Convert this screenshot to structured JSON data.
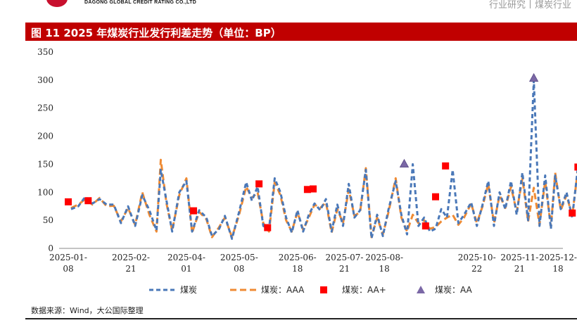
{
  "header": {
    "company": "DAGONG GLOBAL CREDIT RATING CO.,LTD",
    "right_text": "行业研究丨煤炭行业"
  },
  "figure_title": "图 11   2025 年煤炭行业发行利差走势（单位：BP）",
  "source_note": "数据来源：Wind，大公国际整理",
  "colors": {
    "title_bg": "#c00000",
    "series_main": "#4a78b8",
    "series_aaa": "#ef8b34",
    "marker_aaplus": "#ff0000",
    "marker_aa": "#7b68a6"
  },
  "chart_data": {
    "type": "line",
    "title": "",
    "xlabel": "",
    "ylabel": "",
    "ylim": [
      0,
      350
    ],
    "yticks": [
      0,
      50,
      100,
      150,
      200,
      250,
      300,
      350
    ],
    "xlim": [
      "2025-01-08",
      "2025-12-18"
    ],
    "xtick_labels": [
      {
        "line1": "2025-01-",
        "line2": "08",
        "date": "2025-01-08"
      },
      {
        "line1": "2025-02-",
        "line2": "21",
        "date": "2025-02-21"
      },
      {
        "line1": "2025-04-",
        "line2": "01",
        "date": "2025-04-01"
      },
      {
        "line1": "2025-05-",
        "line2": "08",
        "date": "2025-05-08"
      },
      {
        "line1": "2025-06-",
        "line2": "18",
        "date": "2025-06-18"
      },
      {
        "line1": "2025-07-",
        "line2": "21",
        "date": "2025-07-21"
      },
      {
        "line1": "2025-08-",
        "line2": "18",
        "date": "2025-08-18"
      },
      {
        "line1": "2025-10-",
        "line2": "22",
        "date": "2025-10-22"
      },
      {
        "line1": "2025-11-",
        "line2": "21",
        "date": "2025-11-21"
      },
      {
        "line1": "2025-12-",
        "line2": "18",
        "date": "2025-12-18"
      }
    ],
    "grid": false,
    "legend_position": "bottom",
    "series": [
      {
        "name": "煤炭",
        "style": "dashed-line",
        "points": [
          [
            "2025-01-10",
            70
          ],
          [
            "2025-01-15",
            75
          ],
          [
            "2025-01-20",
            92
          ],
          [
            "2025-01-25",
            80
          ],
          [
            "2025-01-30",
            88
          ],
          [
            "2025-02-04",
            78
          ],
          [
            "2025-02-09",
            78
          ],
          [
            "2025-02-14",
            45
          ],
          [
            "2025-02-19",
            75
          ],
          [
            "2025-02-24",
            40
          ],
          [
            "2025-03-01",
            95
          ],
          [
            "2025-03-06",
            68
          ],
          [
            "2025-03-11",
            32
          ],
          [
            "2025-03-14",
            140
          ],
          [
            "2025-03-18",
            85
          ],
          [
            "2025-03-22",
            30
          ],
          [
            "2025-03-27",
            100
          ],
          [
            "2025-04-01",
            120
          ],
          [
            "2025-04-05",
            30
          ],
          [
            "2025-04-10",
            68
          ],
          [
            "2025-04-15",
            55
          ],
          [
            "2025-04-19",
            22
          ],
          [
            "2025-04-24",
            35
          ],
          [
            "2025-04-28",
            58
          ],
          [
            "2025-05-03",
            17
          ],
          [
            "2025-05-08",
            65
          ],
          [
            "2025-05-13",
            118
          ],
          [
            "2025-05-17",
            85
          ],
          [
            "2025-05-21",
            110
          ],
          [
            "2025-05-25",
            40
          ],
          [
            "2025-05-29",
            35
          ],
          [
            "2025-06-02",
            125
          ],
          [
            "2025-06-06",
            100
          ],
          [
            "2025-06-10",
            55
          ],
          [
            "2025-06-14",
            28
          ],
          [
            "2025-06-18",
            68
          ],
          [
            "2025-06-22",
            30
          ],
          [
            "2025-06-26",
            60
          ],
          [
            "2025-06-30",
            80
          ],
          [
            "2025-07-04",
            68
          ],
          [
            "2025-07-08",
            88
          ],
          [
            "2025-07-12",
            30
          ],
          [
            "2025-07-16",
            78
          ],
          [
            "2025-07-20",
            40
          ],
          [
            "2025-07-24",
            115
          ],
          [
            "2025-07-28",
            55
          ],
          [
            "2025-08-01",
            68
          ],
          [
            "2025-08-05",
            140
          ],
          [
            "2025-08-09",
            18
          ],
          [
            "2025-08-13",
            60
          ],
          [
            "2025-08-17",
            22
          ],
          [
            "2025-08-21",
            70
          ],
          [
            "2025-08-26",
            120
          ],
          [
            "2025-08-30",
            60
          ],
          [
            "2025-09-03",
            25
          ],
          [
            "2025-09-07",
            150
          ],
          [
            "2025-09-11",
            40
          ],
          [
            "2025-09-15",
            55
          ],
          [
            "2025-09-19",
            30
          ],
          [
            "2025-09-23",
            35
          ],
          [
            "2025-09-27",
            70
          ],
          [
            "2025-10-01",
            55
          ],
          [
            "2025-10-05",
            140
          ],
          [
            "2025-10-09",
            45
          ],
          [
            "2025-10-13",
            60
          ],
          [
            "2025-10-18",
            82
          ],
          [
            "2025-10-22",
            40
          ],
          [
            "2025-10-26",
            78
          ],
          [
            "2025-10-30",
            120
          ],
          [
            "2025-11-03",
            40
          ],
          [
            "2025-11-07",
            100
          ],
          [
            "2025-11-11",
            70
          ],
          [
            "2025-11-15",
            120
          ],
          [
            "2025-11-19",
            60
          ],
          [
            "2025-11-23",
            135
          ],
          [
            "2025-11-27",
            50
          ],
          [
            "2025-12-01",
            300
          ],
          [
            "2025-12-05",
            40
          ],
          [
            "2025-12-09",
            130
          ],
          [
            "2025-12-13",
            35
          ],
          [
            "2025-12-16",
            130
          ],
          [
            "2025-12-20",
            70
          ],
          [
            "2025-12-24",
            100
          ],
          [
            "2025-12-28",
            55
          ],
          [
            "2026-01-01",
            145
          ]
        ]
      },
      {
        "name": "煤炭：AAA",
        "style": "dashed-line",
        "points": [
          [
            "2025-01-10",
            72
          ],
          [
            "2025-01-15",
            78
          ],
          [
            "2025-01-20",
            88
          ],
          [
            "2025-01-25",
            78
          ],
          [
            "2025-01-30",
            90
          ],
          [
            "2025-02-04",
            75
          ],
          [
            "2025-02-09",
            76
          ],
          [
            "2025-02-14",
            48
          ],
          [
            "2025-02-19",
            72
          ],
          [
            "2025-02-24",
            42
          ],
          [
            "2025-03-01",
            100
          ],
          [
            "2025-03-06",
            60
          ],
          [
            "2025-03-11",
            30
          ],
          [
            "2025-03-14",
            158
          ],
          [
            "2025-03-18",
            80
          ],
          [
            "2025-03-22",
            32
          ],
          [
            "2025-03-27",
            95
          ],
          [
            "2025-04-01",
            125
          ],
          [
            "2025-04-05",
            28
          ],
          [
            "2025-04-10",
            65
          ],
          [
            "2025-04-15",
            52
          ],
          [
            "2025-04-19",
            20
          ],
          [
            "2025-04-24",
            38
          ],
          [
            "2025-04-28",
            55
          ],
          [
            "2025-05-03",
            20
          ],
          [
            "2025-05-08",
            60
          ],
          [
            "2025-05-13",
            110
          ],
          [
            "2025-05-17",
            90
          ],
          [
            "2025-05-21",
            100
          ],
          [
            "2025-05-25",
            45
          ],
          [
            "2025-05-29",
            30
          ],
          [
            "2025-06-02",
            118
          ],
          [
            "2025-06-06",
            95
          ],
          [
            "2025-06-10",
            50
          ],
          [
            "2025-06-14",
            30
          ],
          [
            "2025-06-18",
            65
          ],
          [
            "2025-06-22",
            33
          ],
          [
            "2025-06-26",
            55
          ],
          [
            "2025-06-30",
            78
          ],
          [
            "2025-07-04",
            72
          ],
          [
            "2025-07-08",
            82
          ],
          [
            "2025-07-12",
            28
          ],
          [
            "2025-07-16",
            70
          ],
          [
            "2025-07-20",
            45
          ],
          [
            "2025-07-24",
            105
          ],
          [
            "2025-07-28",
            58
          ],
          [
            "2025-08-01",
            65
          ],
          [
            "2025-08-05",
            143
          ],
          [
            "2025-08-09",
            20
          ],
          [
            "2025-08-13",
            55
          ],
          [
            "2025-08-17",
            25
          ],
          [
            "2025-08-21",
            65
          ],
          [
            "2025-08-26",
            125
          ],
          [
            "2025-08-30",
            55
          ],
          [
            "2025-09-03",
            30
          ],
          [
            "2025-09-07",
            60
          ],
          [
            "2025-09-11",
            45
          ],
          [
            "2025-09-15",
            50
          ],
          [
            "2025-09-19",
            35
          ],
          [
            "2025-09-23",
            38
          ],
          [
            "2025-09-27",
            48
          ],
          [
            "2025-10-01",
            55
          ],
          [
            "2025-10-05",
            60
          ],
          [
            "2025-10-09",
            42
          ],
          [
            "2025-10-13",
            55
          ],
          [
            "2025-10-18",
            80
          ],
          [
            "2025-10-22",
            45
          ],
          [
            "2025-10-26",
            75
          ],
          [
            "2025-10-30",
            115
          ],
          [
            "2025-11-03",
            45
          ],
          [
            "2025-11-07",
            95
          ],
          [
            "2025-11-11",
            72
          ],
          [
            "2025-11-15",
            110
          ],
          [
            "2025-11-19",
            65
          ],
          [
            "2025-11-23",
            125
          ],
          [
            "2025-11-27",
            48
          ],
          [
            "2025-12-01",
            108
          ],
          [
            "2025-12-05",
            42
          ],
          [
            "2025-12-09",
            120
          ],
          [
            "2025-12-13",
            38
          ],
          [
            "2025-12-16",
            135
          ],
          [
            "2025-12-20",
            68
          ],
          [
            "2025-12-24",
            95
          ],
          [
            "2025-12-28",
            58
          ],
          [
            "2026-01-01",
            140
          ]
        ]
      },
      {
        "name": "煤炭：AA+",
        "style": "square-marker",
        "points": [
          [
            "2025-01-08",
            83
          ],
          [
            "2025-01-22",
            85
          ],
          [
            "2025-04-06",
            67
          ],
          [
            "2025-05-22",
            115
          ],
          [
            "2025-05-28",
            37
          ],
          [
            "2025-06-25",
            105
          ],
          [
            "2025-06-29",
            106
          ],
          [
            "2025-09-16",
            40
          ],
          [
            "2025-09-23",
            92
          ],
          [
            "2025-09-30",
            147
          ],
          [
            "2025-12-28",
            63
          ],
          [
            "2026-01-01",
            145
          ]
        ]
      },
      {
        "name": "煤炭：AA",
        "style": "triangle-marker",
        "points": [
          [
            "2025-09-01",
            151
          ],
          [
            "2025-12-01",
            304
          ]
        ]
      }
    ]
  }
}
